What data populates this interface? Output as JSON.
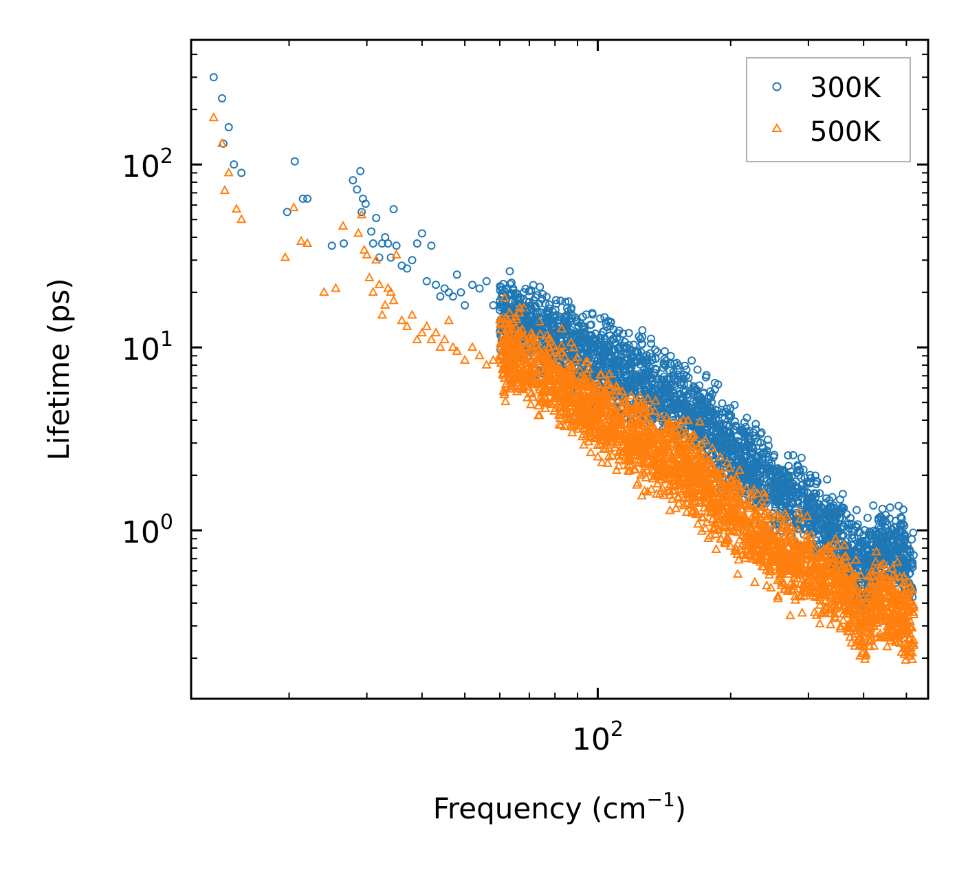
{
  "chart_data": {
    "type": "scatter",
    "title": "",
    "xlabel": "Frequency (cm",
    "xlabel_sup": "−1",
    "xlabel_end": ")",
    "ylabel": "Lifetime (ps)",
    "xscale": "log",
    "yscale": "log",
    "xlim": [
      12,
      560
    ],
    "ylim": [
      0.12,
      480
    ],
    "x_ticks": [
      {
        "value": 100,
        "base": "10",
        "exp": "2"
      }
    ],
    "y_ticks": [
      {
        "value": 1,
        "base": "10",
        "exp": "0"
      },
      {
        "value": 10,
        "base": "10",
        "exp": "1"
      },
      {
        "value": 100,
        "base": "10",
        "exp": "2"
      }
    ],
    "legend_position": "top-right",
    "series": [
      {
        "name": "300K",
        "marker": "circle",
        "color": "#1f77b4",
        "x": [
          13.5,
          14.1,
          14.2,
          14.6,
          15.0,
          15.6,
          19.8,
          20.6,
          21.5,
          22.0,
          25.0,
          26.6,
          27.9,
          28.5,
          29.0,
          29.2,
          29.4,
          29.8,
          30.7,
          31.0,
          31.5,
          32.0,
          32.5,
          33.0,
          33.5,
          34.0,
          34.5,
          35.0,
          36.0,
          37.0,
          38.0,
          39.0,
          40.0,
          41.0,
          42.0,
          43.0,
          44.0,
          45.0,
          46.0,
          47.0,
          48.0,
          49.0,
          50.0,
          52.0,
          54.0,
          56.0,
          58.0,
          60.0,
          62.0,
          65.0,
          68.0,
          70.0,
          72.0
        ],
        "y": [
          300,
          230,
          130,
          160,
          100,
          90,
          55,
          104,
          65,
          65,
          36,
          37,
          82,
          73,
          92,
          55,
          65,
          61,
          43,
          37,
          51,
          31,
          37,
          40,
          37,
          31,
          57,
          36,
          28,
          27,
          30,
          37,
          42,
          23,
          36,
          22,
          19,
          21,
          20,
          19,
          25,
          20,
          17,
          22,
          21,
          23,
          17,
          16,
          21,
          19,
          20,
          16,
          14
        ]
      },
      {
        "name": "500K",
        "marker": "triangle",
        "color": "#ff7f0e",
        "x": [
          13.5,
          14.1,
          14.3,
          14.6,
          15.2,
          15.6,
          19.6,
          20.5,
          21.3,
          22.0,
          24.0,
          25.5,
          26.5,
          28.7,
          29.2,
          29.6,
          30.0,
          30.4,
          31.0,
          31.5,
          32.0,
          32.5,
          33.0,
          33.5,
          34.0,
          34.5,
          35.0,
          36.0,
          37.0,
          38.0,
          39.0,
          40.0,
          41.0,
          42.0,
          43.0,
          44.0,
          45.0,
          46.0,
          47.0,
          48.0,
          50.0,
          52.0,
          54.0,
          56.0,
          58.0,
          60.0,
          62.0,
          65.0,
          68.0,
          70.0
        ],
        "y": [
          180,
          130,
          72,
          90,
          57,
          50,
          31,
          58,
          38,
          37,
          20,
          21,
          46,
          42,
          53,
          34,
          32,
          24,
          20,
          30,
          22,
          15,
          17,
          21,
          20,
          18,
          32,
          14,
          13,
          15,
          11,
          12,
          13,
          11,
          12,
          10,
          11,
          14,
          10,
          9.5,
          8.5,
          10,
          9,
          8,
          8.5,
          9,
          8,
          7.5,
          7,
          6.5
        ]
      }
    ],
    "dense_trend": [
      {
        "series": "300K",
        "x": [
          60,
          80,
          100,
          130,
          160,
          200,
          250,
          300,
          350,
          400,
          440,
          480,
          520
        ],
        "y": [
          15,
          11,
          8.5,
          6.2,
          4.6,
          2.8,
          1.7,
          1.3,
          0.95,
          0.62,
          0.85,
          0.75,
          0.6
        ]
      },
      {
        "series": "500K",
        "x": [
          60,
          80,
          100,
          130,
          160,
          200,
          250,
          300,
          350,
          400,
          440,
          480,
          520
        ],
        "y": [
          10,
          6.5,
          4.2,
          3.0,
          2.2,
          1.25,
          0.8,
          0.6,
          0.5,
          0.33,
          0.42,
          0.36,
          0.3
        ]
      }
    ]
  }
}
